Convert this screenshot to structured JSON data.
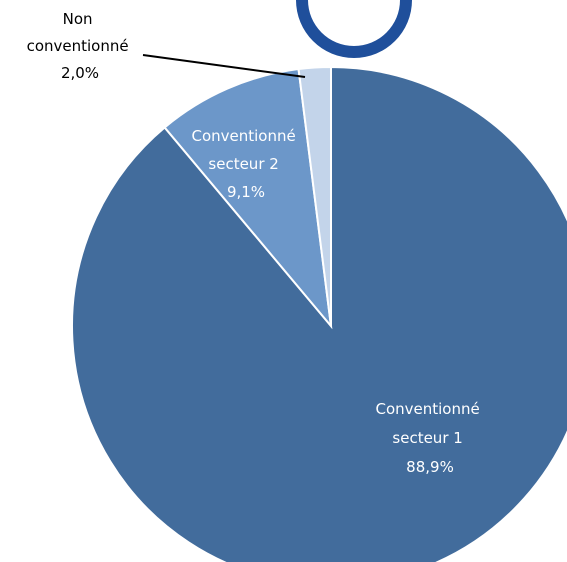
{
  "chart_data": {
    "type": "pie",
    "title": "",
    "slices": [
      {
        "label_lines": [
          "Conventionné",
          "secteur 1",
          "88,9%"
        ],
        "value": 88.9,
        "color": "#426c9c",
        "label_color": "#ffffff"
      },
      {
        "label_lines": [
          "Conventionné",
          "secteur 2",
          "9,1%"
        ],
        "value": 9.1,
        "color": "#6c97c9",
        "label_color": "#ffffff"
      },
      {
        "label_lines": [
          "Non",
          "conventionné",
          "2,0%"
        ],
        "value": 2.0,
        "color": "#c3d4ea",
        "label_color": "#000000"
      }
    ],
    "start_angle_deg": 0,
    "direction": "clockwise",
    "legend": "none",
    "logo_color": "#1f4f9b"
  }
}
